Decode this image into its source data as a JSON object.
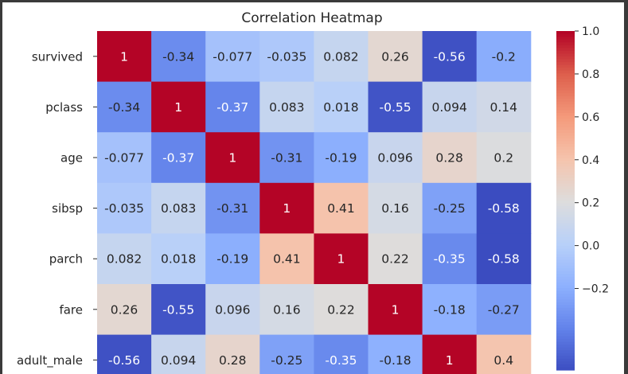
{
  "chart_data": {
    "type": "heatmap",
    "title": "Correlation Heatmap",
    "rows": [
      "survived",
      "pclass",
      "age",
      "sibsp",
      "parch",
      "fare",
      "adult_male"
    ],
    "values": [
      [
        1,
        -0.34,
        -0.077,
        -0.035,
        0.082,
        0.26,
        -0.56,
        -0.2
      ],
      [
        -0.34,
        1,
        -0.37,
        0.083,
        0.018,
        -0.55,
        0.094,
        0.14
      ],
      [
        -0.077,
        -0.37,
        1,
        -0.31,
        -0.19,
        0.096,
        0.28,
        0.2
      ],
      [
        -0.035,
        0.083,
        -0.31,
        1,
        0.41,
        0.16,
        -0.25,
        -0.58
      ],
      [
        0.082,
        0.018,
        -0.19,
        0.41,
        1,
        0.22,
        -0.35,
        -0.58
      ],
      [
        0.26,
        -0.55,
        0.096,
        0.16,
        0.22,
        1,
        -0.18,
        -0.27
      ],
      [
        -0.56,
        0.094,
        0.28,
        -0.25,
        -0.35,
        -0.18,
        1,
        0.4
      ]
    ],
    "colormap": "coolwarm",
    "vmin": -0.58,
    "vmax": 1.0,
    "colorbar_ticks": [
      "1.0",
      "0.8",
      "0.6",
      "0.4",
      "0.2",
      "0.0",
      "−0.2"
    ],
    "colorbar_tick_values": [
      1.0,
      0.8,
      0.6,
      0.4,
      0.2,
      0.0,
      -0.2
    ]
  }
}
